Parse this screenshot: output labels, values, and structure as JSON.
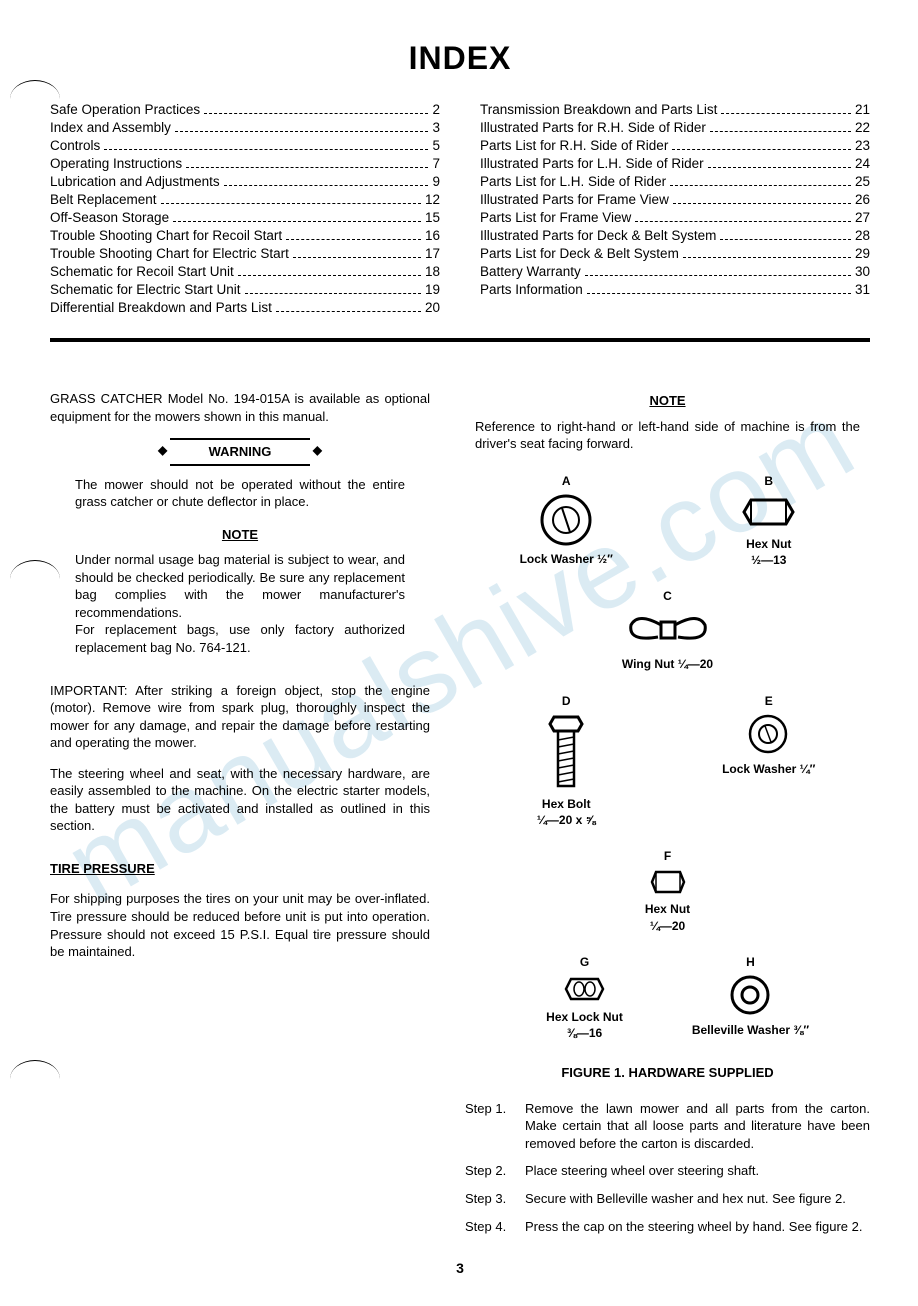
{
  "watermark": "manualshive.com",
  "title": "INDEX",
  "index_left": [
    {
      "label": "Safe Operation Practices",
      "page": "2"
    },
    {
      "label": "Index and Assembly",
      "page": "3"
    },
    {
      "label": "Controls",
      "page": "5"
    },
    {
      "label": "Operating Instructions",
      "page": "7"
    },
    {
      "label": "Lubrication and Adjustments",
      "page": "9"
    },
    {
      "label": "Belt Replacement",
      "page": "12"
    },
    {
      "label": "Off-Season Storage",
      "page": "15"
    },
    {
      "label": "Trouble Shooting Chart for Recoil Start",
      "page": "16"
    },
    {
      "label": "Trouble Shooting Chart for Electric Start",
      "page": "17"
    },
    {
      "label": "Schematic for Recoil Start Unit",
      "page": "18"
    },
    {
      "label": "Schematic for Electric Start Unit",
      "page": "19"
    },
    {
      "label": "Differential Breakdown and Parts List",
      "page": "20"
    }
  ],
  "index_right": [
    {
      "label": "Transmission Breakdown and Parts List",
      "page": "21"
    },
    {
      "label": "Illustrated Parts for R.H. Side of Rider",
      "page": "22"
    },
    {
      "label": "Parts List for R.H. Side of Rider",
      "page": "23"
    },
    {
      "label": "Illustrated Parts for L.H. Side of Rider",
      "page": "24"
    },
    {
      "label": "Parts List for L.H. Side of Rider",
      "page": "25"
    },
    {
      "label": "Illustrated Parts for Frame View",
      "page": "26"
    },
    {
      "label": "Parts List for Frame View",
      "page": "27"
    },
    {
      "label": "Illustrated Parts for Deck & Belt System",
      "page": "28"
    },
    {
      "label": "Parts List for Deck & Belt System",
      "page": "29"
    },
    {
      "label": "Battery Warranty",
      "page": "30"
    },
    {
      "label": "Parts Information",
      "page": "31"
    }
  ],
  "grass_catcher": "GRASS CATCHER Model No. 194-015A is available as optional equipment for the mowers shown in this manual.",
  "warning_label": "WARNING",
  "warning_text": "The mower should not be operated without the entire grass catcher or chute deflector in place.",
  "note_label": "NOTE",
  "note_left": "Under normal usage bag material is subject to wear, and should be checked periodically. Be sure any replacement bag complies with the mower manufacturer's recommendations.\nFor replacement bags, use only factory authorized replacement bag No. 764-121.",
  "important": "IMPORTANT: After striking a foreign object, stop the engine (motor). Remove wire from spark plug, thoroughly inspect the mower for any damage, and repair the damage before restarting and operating the mower.",
  "assembly_para": "The steering wheel and seat, with the necessary hardware, are easily assembled to the machine. On the electric starter models, the battery must be activated and installed as outlined in this section.",
  "tire_head": "TIRE PRESSURE",
  "tire_text": "For shipping purposes the tires on your unit may be over-inflated. Tire pressure should be reduced before unit is put into operation. Pressure should not exceed 15 P.S.I. Equal tire pressure should be maintained.",
  "note_right": "Reference to right-hand or left-hand side of machine is from the driver's seat facing forward.",
  "hardware": [
    {
      "letter": "A",
      "name": "Lock Washer ½″"
    },
    {
      "letter": "B",
      "name": "Hex Nut\n½—13"
    },
    {
      "letter": "C",
      "name": "Wing Nut ¼—20"
    },
    {
      "letter": "D",
      "name": "Hex Bolt\n¼—20 x ⅝"
    },
    {
      "letter": "E",
      "name": "Lock Washer ¼″"
    },
    {
      "letter": "F",
      "name": "Hex Nut\n¼—20"
    },
    {
      "letter": "G",
      "name": "Hex Lock Nut\n⅜—16"
    },
    {
      "letter": "H",
      "name": "Belleville Washer ⅜″"
    }
  ],
  "figure_caption": "FIGURE 1. HARDWARE SUPPLIED",
  "steps": [
    {
      "n": "Step 1.",
      "t": "Remove the lawn mower and all parts from the carton. Make certain that all loose parts and literature have been removed before the carton is discarded."
    },
    {
      "n": "Step 2.",
      "t": "Place steering wheel over steering shaft."
    },
    {
      "n": "Step 3.",
      "t": "Secure with Belleville washer and hex nut. See figure 2."
    },
    {
      "n": "Step 4.",
      "t": "Press the cap on the steering wheel by hand. See figure 2."
    }
  ],
  "page_number": "3"
}
